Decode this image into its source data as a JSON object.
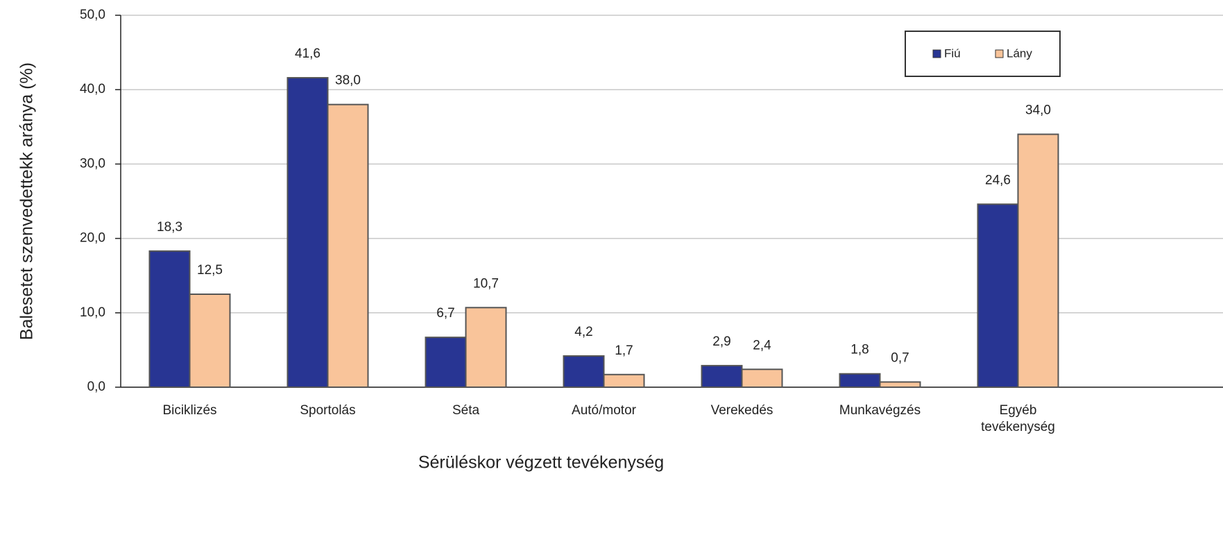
{
  "chart_data": {
    "type": "bar",
    "x_label": "Sérüléskor végzett tevékenység",
    "y_label": "Balesetet szenvedettekk aránya (%)",
    "categories": [
      "Biciklizés",
      "Sportolás",
      "Séta",
      "Autó/motor",
      "Verekedés",
      "Munkavégzés",
      "Egyéb tevékenység"
    ],
    "series": [
      {
        "name": "Fiú",
        "color": "#283593",
        "values": [
          18.3,
          41.6,
          6.7,
          4.2,
          2.9,
          1.8,
          24.6
        ],
        "value_labels": [
          "18,3",
          "41,6",
          "6,7",
          "4,2",
          "2,9",
          "1,8",
          "24,6"
        ]
      },
      {
        "name": "Lány",
        "color": "#f9c49a",
        "values": [
          12.5,
          38.0,
          10.7,
          1.7,
          2.4,
          0.7,
          34.0
        ],
        "value_labels": [
          "12,5",
          "38,0",
          "10,7",
          "1,7",
          "2,4",
          "0,7",
          "34,0"
        ]
      }
    ],
    "ylim": [
      0,
      50
    ],
    "yticks": [
      {
        "value": 0,
        "label": "0,0"
      },
      {
        "value": 10,
        "label": "10,0"
      },
      {
        "value": 20,
        "label": "20,0"
      },
      {
        "value": 30,
        "label": "30,0"
      },
      {
        "value": 40,
        "label": "40,0"
      },
      {
        "value": 50,
        "label": "50,0"
      }
    ],
    "grid": true,
    "legend": "upper right"
  }
}
